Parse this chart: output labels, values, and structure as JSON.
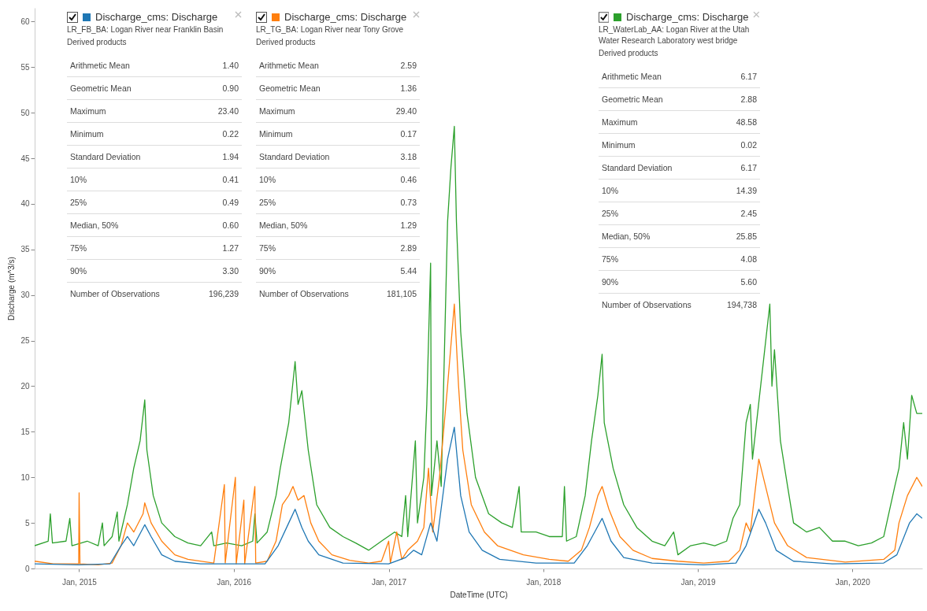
{
  "chart_data": {
    "type": "line",
    "xlabel": "DateTime (UTC)",
    "ylabel": "Discharge (m^3/s)",
    "xlim": [
      "2014-09-18",
      "2020-06-14"
    ],
    "xticks": [
      {
        "value": "2015-01-01",
        "label": "Jan, 2015"
      },
      {
        "value": "2016-01-01",
        "label": "Jan, 2016"
      },
      {
        "value": "2017-01-01",
        "label": "Jan, 2017"
      },
      {
        "value": "2018-01-01",
        "label": "Jan, 2018"
      },
      {
        "value": "2019-01-01",
        "label": "Jan, 2019"
      },
      {
        "value": "2020-01-01",
        "label": "Jan, 2020"
      }
    ],
    "ylim": [
      0,
      61.5
    ],
    "yticks": [
      0,
      5,
      10,
      15,
      20,
      25,
      30,
      35,
      40,
      45,
      50,
      55,
      60
    ],
    "legend": "top",
    "line_style": "solid",
    "series": [
      {
        "name": "Discharge_cms: Discharge",
        "color": "#1f77b4",
        "x": [
          "2014-09-18",
          "2015-01-01",
          "2015-03-15",
          "2015-04-10",
          "2015-04-25",
          "2015-05-10",
          "2015-06-05",
          "2015-06-20",
          "2015-07-15",
          "2015-08-15",
          "2015-10-15",
          "2016-03-15",
          "2016-04-15",
          "2016-05-10",
          "2016-05-25",
          "2016-06-10",
          "2016-06-25",
          "2016-07-20",
          "2016-09-15",
          "2017-01-01",
          "2017-02-10",
          "2017-03-01",
          "2017-03-20",
          "2017-04-10",
          "2017-04-25",
          "2017-05-20",
          "2017-06-05",
          "2017-06-20",
          "2017-07-10",
          "2017-08-10",
          "2017-09-20",
          "2017-12-15",
          "2018-03-15",
          "2018-04-15",
          "2018-05-20",
          "2018-06-10",
          "2018-07-10",
          "2018-09-15",
          "2019-01-15",
          "2019-04-01",
          "2019-04-25",
          "2019-05-25",
          "2019-06-10",
          "2019-07-05",
          "2019-08-15",
          "2019-11-15",
          "2020-03-15",
          "2020-04-15",
          "2020-05-15",
          "2020-06-01",
          "2020-06-14"
        ],
        "values": [
          0.5,
          0.4,
          0.5,
          2.5,
          3.5,
          2.5,
          4.8,
          3.5,
          1.5,
          0.8,
          0.5,
          0.5,
          2.5,
          5,
          6.5,
          4.5,
          3,
          1.5,
          0.6,
          0.5,
          1.2,
          2,
          1.5,
          5,
          3,
          12,
          15.5,
          8,
          4,
          2,
          1,
          0.6,
          0.6,
          2.5,
          5.5,
          3,
          1.2,
          0.6,
          0.4,
          0.6,
          2.5,
          6.5,
          5,
          2,
          0.8,
          0.5,
          0.6,
          1.5,
          5,
          6,
          5.5
        ]
      },
      {
        "name": "Discharge_cms: Discharge",
        "color": "#ff7f0e",
        "x": [
          "2014-09-18",
          "2014-11-01",
          "2014-12-31",
          "2015-01-01",
          "2015-01-03",
          "2015-02-15",
          "2015-03-20",
          "2015-04-10",
          "2015-04-25",
          "2015-05-10",
          "2015-06-01",
          "2015-06-05",
          "2015-06-20",
          "2015-07-15",
          "2015-08-15",
          "2015-09-15",
          "2015-11-15",
          "2015-12-10",
          "2015-12-12",
          "2016-01-05",
          "2016-01-07",
          "2016-01-25",
          "2016-01-27",
          "2016-02-20",
          "2016-02-22",
          "2016-03-20",
          "2016-04-10",
          "2016-04-25",
          "2016-05-10",
          "2016-05-20",
          "2016-06-01",
          "2016-06-15",
          "2016-07-01",
          "2016-07-20",
          "2016-08-20",
          "2016-10-01",
          "2016-11-15",
          "2016-12-15",
          "2017-01-01",
          "2017-01-05",
          "2017-01-20",
          "2017-02-01",
          "2017-02-15",
          "2017-03-10",
          "2017-03-25",
          "2017-04-05",
          "2017-04-15",
          "2017-05-01",
          "2017-05-20",
          "2017-06-05",
          "2017-06-15",
          "2017-06-25",
          "2017-07-15",
          "2017-08-15",
          "2017-09-15",
          "2017-11-15",
          "2018-01-15",
          "2018-03-01",
          "2018-04-01",
          "2018-04-20",
          "2018-05-10",
          "2018-05-20",
          "2018-06-05",
          "2018-07-01",
          "2018-08-01",
          "2018-09-15",
          "2018-11-15",
          "2019-01-15",
          "2019-03-15",
          "2019-04-10",
          "2019-04-25",
          "2019-05-05",
          "2019-05-25",
          "2019-06-10",
          "2019-07-01",
          "2019-08-01",
          "2019-09-15",
          "2019-12-15",
          "2020-03-15",
          "2020-04-10",
          "2020-04-20",
          "2020-05-10",
          "2020-06-01",
          "2020-06-14"
        ],
        "values": [
          0.8,
          0.5,
          0.5,
          8.3,
          0.5,
          0.4,
          0.6,
          2.5,
          5,
          4,
          6,
          7.2,
          5,
          3,
          1.5,
          1,
          0.6,
          9.2,
          0.6,
          10,
          0.5,
          7.5,
          0.5,
          9,
          0.6,
          0.8,
          3,
          7,
          8,
          9,
          7.5,
          8,
          5,
          3,
          1.5,
          0.9,
          0.6,
          0.8,
          3,
          0.6,
          4,
          1,
          2,
          3,
          4.5,
          11,
          4,
          10,
          20,
          29,
          20,
          13,
          7,
          4,
          2.5,
          1.5,
          1,
          0.8,
          2,
          4.5,
          8,
          9,
          6.5,
          3.5,
          2,
          1.1,
          0.8,
          0.6,
          0.8,
          2,
          5,
          4,
          12,
          9,
          5,
          2.5,
          1.2,
          0.7,
          1,
          2,
          5,
          8,
          10,
          9
        ]
      },
      {
        "name": "Discharge_cms: Discharge",
        "color": "#2ca02c",
        "x": [
          "2014-09-18",
          "2014-10-20",
          "2014-10-25",
          "2014-10-30",
          "2014-12-01",
          "2014-12-10",
          "2014-12-15",
          "2015-01-20",
          "2015-02-15",
          "2015-02-25",
          "2015-03-01",
          "2015-03-20",
          "2015-04-01",
          "2015-04-05",
          "2015-04-25",
          "2015-05-10",
          "2015-05-25",
          "2015-06-05",
          "2015-06-10",
          "2015-06-25",
          "2015-07-15",
          "2015-08-15",
          "2015-09-15",
          "2015-10-15",
          "2015-11-10",
          "2015-11-15",
          "2015-12-15",
          "2016-01-20",
          "2016-02-15",
          "2016-02-20",
          "2016-02-25",
          "2016-03-20",
          "2016-04-10",
          "2016-04-20",
          "2016-05-10",
          "2016-05-25",
          "2016-06-01",
          "2016-06-10",
          "2016-06-25",
          "2016-07-15",
          "2016-08-15",
          "2016-09-15",
          "2016-10-15",
          "2016-11-15",
          "2016-12-15",
          "2017-01-15",
          "2017-02-01",
          "2017-02-10",
          "2017-02-15",
          "2017-03-05",
          "2017-03-10",
          "2017-03-25",
          "2017-04-01",
          "2017-04-10",
          "2017-04-12",
          "2017-04-25",
          "2017-05-05",
          "2017-05-20",
          "2017-05-28",
          "2017-06-05",
          "2017-06-10",
          "2017-06-20",
          "2017-07-05",
          "2017-07-25",
          "2017-08-25",
          "2017-09-25",
          "2017-10-20",
          "2017-11-05",
          "2017-11-10",
          "2017-12-15",
          "2018-01-15",
          "2018-02-15",
          "2018-02-20",
          "2018-02-25",
          "2018-03-20",
          "2018-04-10",
          "2018-04-25",
          "2018-05-10",
          "2018-05-20",
          "2018-05-25",
          "2018-06-15",
          "2018-07-10",
          "2018-08-10",
          "2018-09-15",
          "2018-10-15",
          "2018-11-05",
          "2018-11-15",
          "2018-12-15",
          "2019-01-15",
          "2019-02-10",
          "2019-03-10",
          "2019-03-25",
          "2019-04-10",
          "2019-04-25",
          "2019-05-05",
          "2019-05-10",
          "2019-06-20",
          "2019-06-25",
          "2019-07-01",
          "2019-07-15",
          "2019-08-01",
          "2019-08-15",
          "2019-09-15",
          "2019-10-15",
          "2019-11-15",
          "2019-12-15",
          "2020-01-15",
          "2020-02-15",
          "2020-03-15",
          "2020-04-10",
          "2020-04-20",
          "2020-05-01",
          "2020-05-10",
          "2020-05-20",
          "2020-06-01",
          "2020-06-14"
        ],
        "values": [
          2.5,
          3,
          6,
          2.8,
          3,
          5.5,
          2.5,
          3,
          2.5,
          5,
          2.5,
          3.5,
          6.2,
          3,
          7,
          11,
          14,
          18.5,
          13,
          8,
          5,
          3.5,
          2.8,
          2.5,
          4,
          2.5,
          2.8,
          2.5,
          3,
          6,
          2.8,
          4,
          8,
          11,
          16,
          22.7,
          18,
          19.5,
          13,
          7,
          4.5,
          3.5,
          2.8,
          2,
          3,
          4,
          3.5,
          8,
          3.5,
          14,
          5,
          10,
          18,
          33.5,
          8,
          14,
          9,
          38,
          44,
          48.5,
          38,
          26,
          17,
          10,
          6,
          5,
          4.5,
          9,
          4,
          4,
          3.5,
          3.5,
          9,
          3,
          3.5,
          8,
          14,
          19,
          23.5,
          16,
          11,
          7,
          4.5,
          3,
          2.5,
          4,
          1.5,
          2.5,
          2.8,
          2.5,
          3,
          5.5,
          7,
          16,
          18,
          12,
          29,
          20,
          24,
          14,
          9,
          5,
          4,
          4.5,
          3,
          3,
          2.5,
          2.8,
          3.5,
          9,
          11,
          16,
          12,
          19,
          17,
          17
        ]
      }
    ],
    "annotations": [
      "LR_FB_BA: Logan River near Franklin Basin",
      "Derived products",
      "Arithmetic Mean",
      "1.40",
      "Geometric Mean",
      "0.90",
      "Maximum",
      "23.40",
      "Minimum",
      "0.22",
      "Standard Deviation",
      "1.94",
      "10%",
      "0.41",
      "25%",
      "0.49",
      "Median, 50%",
      "0.60",
      "75%",
      "1.27",
      "90%",
      "3.30",
      "Number of Observations",
      "196,239",
      "LR_TG_BA: Logan River near Tony Grove",
      "Derived products",
      "Arithmetic Mean",
      "2.59",
      "Geometric Mean",
      "1.36",
      "Maximum",
      "29.40",
      "Minimum",
      "0.17",
      "Standard Deviation",
      "3.18",
      "10%",
      "0.46",
      "25%",
      "0.73",
      "Median, 50%",
      "1.29",
      "75%",
      "2.89",
      "90%",
      "5.44",
      "Number of Observations",
      "181,105",
      "LR_WaterLab_AA: Logan River at the Utah Water Research Laboratory west bridge",
      "Derived products",
      "Arithmetic Mean",
      "6.17",
      "Geometric Mean",
      "2.88",
      "Maximum",
      "48.58",
      "Minimum",
      "0.02",
      "Standard Deviation",
      "6.17",
      "10%",
      "14.39",
      "25%",
      "2.45",
      "Median, 50%",
      "25.85",
      "75%",
      "4.08",
      "90%",
      "5.60",
      "Number of Observations",
      "194,738"
    ]
  }
}
